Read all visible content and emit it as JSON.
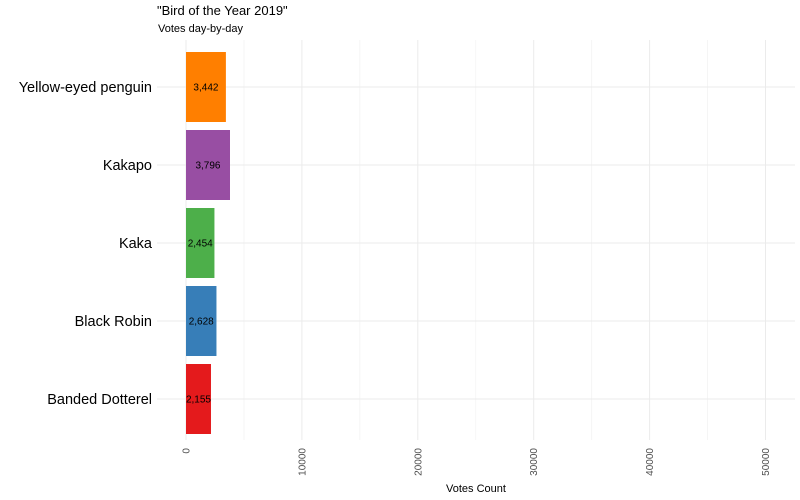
{
  "chart_data": {
    "type": "bar",
    "orientation": "horizontal",
    "title": "\"Bird of the Year 2019\"",
    "subtitle": "Votes day-by-day",
    "xlabel": "Votes Count",
    "ylabel": "",
    "categories": [
      "Yellow-eyed penguin",
      "Kakapo",
      "Kaka",
      "Black Robin",
      "Banded Dotterel"
    ],
    "values": [
      3442,
      3796,
      2454,
      2628,
      2155
    ],
    "value_labels": [
      "3,442",
      "3,796",
      "2,454",
      "2,628",
      "2,155"
    ],
    "colors": [
      "#FF7F00",
      "#984EA3",
      "#4DAF4A",
      "#377EB8",
      "#E41A1C"
    ],
    "xlim": [
      0,
      52000
    ],
    "x_ticks": [
      0,
      10000,
      20000,
      30000,
      40000,
      50000
    ],
    "x_tick_labels": [
      "0",
      "10000",
      "20000",
      "30000",
      "40000",
      "50000"
    ],
    "grid": true,
    "legend": "none"
  }
}
